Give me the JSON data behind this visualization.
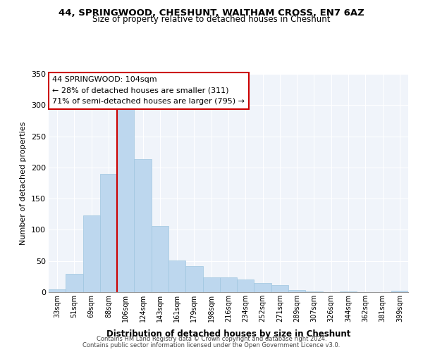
{
  "title1": "44, SPRINGWOOD, CHESHUNT, WALTHAM CROSS, EN7 6AZ",
  "title2": "Size of property relative to detached houses in Cheshunt",
  "xlabel": "Distribution of detached houses by size in Cheshunt",
  "ylabel": "Number of detached properties",
  "categories": [
    "33sqm",
    "51sqm",
    "69sqm",
    "88sqm",
    "106sqm",
    "124sqm",
    "143sqm",
    "161sqm",
    "179sqm",
    "198sqm",
    "216sqm",
    "234sqm",
    "252sqm",
    "271sqm",
    "289sqm",
    "307sqm",
    "326sqm",
    "344sqm",
    "362sqm",
    "381sqm",
    "399sqm"
  ],
  "values": [
    5,
    29,
    123,
    190,
    293,
    213,
    106,
    51,
    42,
    24,
    24,
    20,
    15,
    11,
    3,
    1,
    0,
    1,
    0,
    0,
    2
  ],
  "bar_color": "#bdd7ee",
  "bar_edge_color": "#9ec6e0",
  "highlight_line_index": 4,
  "highlight_line_color": "#cc0000",
  "annotation_title": "44 SPRINGWOOD: 104sqm",
  "annotation_line1": "← 28% of detached houses are smaller (311)",
  "annotation_line2": "71% of semi-detached houses are larger (795) →",
  "annotation_box_edgecolor": "#cc0000",
  "ylim": [
    0,
    350
  ],
  "yticks": [
    0,
    50,
    100,
    150,
    200,
    250,
    300,
    350
  ],
  "footer1": "Contains HM Land Registry data © Crown copyright and database right 2024.",
  "footer2": "Contains public sector information licensed under the Open Government Licence v3.0.",
  "bg_color": "#f0f4fa"
}
